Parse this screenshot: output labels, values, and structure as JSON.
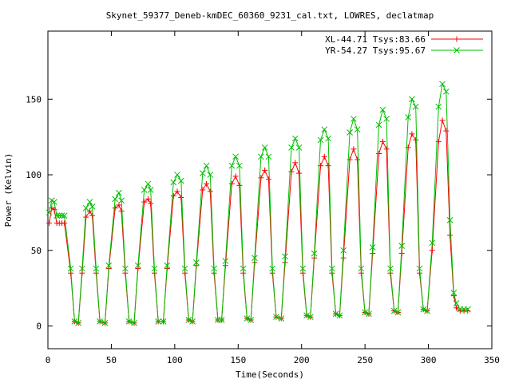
{
  "chart_data": {
    "type": "line",
    "title": "Skynet_59377_Deneb-kmDEC_60360_9231_cal.txt, LOWRES, declatmap",
    "xlabel": "Time(Seconds)",
    "ylabel": "Power (Kelvin)",
    "xlim": [
      0,
      350
    ],
    "ylim": [
      -15,
      195
    ],
    "x_ticks": [
      0,
      50,
      100,
      150,
      200,
      250,
      300,
      350
    ],
    "y_ticks": [
      0,
      50,
      100,
      150
    ],
    "grid": false,
    "legend_position": "top-right",
    "series": [
      {
        "name": "XL-44.71 Tsys:83.66",
        "color": "#ff0000",
        "marker": "plus",
        "points": [
          [
            1,
            68
          ],
          [
            3,
            78
          ],
          [
            5,
            77
          ],
          [
            7,
            68
          ],
          [
            9,
            68
          ],
          [
            11,
            68
          ],
          [
            13,
            68
          ],
          [
            18,
            35
          ],
          [
            21,
            3
          ],
          [
            24,
            2
          ],
          [
            27,
            35
          ],
          [
            30,
            72
          ],
          [
            33,
            76
          ],
          [
            35,
            73
          ],
          [
            38,
            35
          ],
          [
            41,
            3
          ],
          [
            45,
            2
          ],
          [
            48,
            38
          ],
          [
            53,
            78
          ],
          [
            56,
            80
          ],
          [
            58,
            76
          ],
          [
            61,
            35
          ],
          [
            64,
            3
          ],
          [
            68,
            2
          ],
          [
            71,
            38
          ],
          [
            76,
            82
          ],
          [
            79,
            84
          ],
          [
            81,
            81
          ],
          [
            84,
            35
          ],
          [
            87,
            3
          ],
          [
            91,
            3
          ],
          [
            94,
            38
          ],
          [
            99,
            86
          ],
          [
            102,
            89
          ],
          [
            105,
            85
          ],
          [
            108,
            35
          ],
          [
            111,
            4
          ],
          [
            114,
            3
          ],
          [
            117,
            40
          ],
          [
            122,
            90
          ],
          [
            125,
            94
          ],
          [
            128,
            89
          ],
          [
            131,
            35
          ],
          [
            134,
            4
          ],
          [
            137,
            4
          ],
          [
            140,
            40
          ],
          [
            145,
            94
          ],
          [
            148,
            99
          ],
          [
            151,
            93
          ],
          [
            154,
            35
          ],
          [
            157,
            5
          ],
          [
            160,
            4
          ],
          [
            163,
            42
          ],
          [
            168,
            98
          ],
          [
            171,
            103
          ],
          [
            174,
            97
          ],
          [
            177,
            35
          ],
          [
            180,
            6
          ],
          [
            184,
            5
          ],
          [
            187,
            42
          ],
          [
            192,
            102
          ],
          [
            195,
            108
          ],
          [
            198,
            101
          ],
          [
            201,
            35
          ],
          [
            204,
            7
          ],
          [
            207,
            6
          ],
          [
            210,
            45
          ],
          [
            215,
            106
          ],
          [
            218,
            112
          ],
          [
            221,
            106
          ],
          [
            224,
            35
          ],
          [
            227,
            8
          ],
          [
            230,
            7
          ],
          [
            233,
            45
          ],
          [
            238,
            110
          ],
          [
            241,
            117
          ],
          [
            244,
            110
          ],
          [
            247,
            35
          ],
          [
            250,
            9
          ],
          [
            253,
            8
          ],
          [
            256,
            48
          ],
          [
            261,
            114
          ],
          [
            264,
            122
          ],
          [
            267,
            117
          ],
          [
            270,
            35
          ],
          [
            273,
            10
          ],
          [
            276,
            9
          ],
          [
            279,
            48
          ],
          [
            284,
            118
          ],
          [
            287,
            127
          ],
          [
            290,
            123
          ],
          [
            293,
            35
          ],
          [
            296,
            11
          ],
          [
            299,
            10
          ],
          [
            303,
            50
          ],
          [
            308,
            122
          ],
          [
            311,
            136
          ],
          [
            314,
            129
          ],
          [
            317,
            60
          ],
          [
            320,
            20
          ],
          [
            322,
            12
          ],
          [
            325,
            10
          ],
          [
            328,
            10
          ],
          [
            331,
            10
          ]
        ]
      },
      {
        "name": "YR-54.27 Tsys:95.67",
        "color": "#00c000",
        "marker": "cross",
        "points": [
          [
            1,
            75
          ],
          [
            3,
            83
          ],
          [
            5,
            82
          ],
          [
            7,
            73
          ],
          [
            9,
            73
          ],
          [
            11,
            73
          ],
          [
            13,
            73
          ],
          [
            18,
            38
          ],
          [
            21,
            3
          ],
          [
            24,
            2
          ],
          [
            27,
            38
          ],
          [
            30,
            78
          ],
          [
            33,
            82
          ],
          [
            35,
            79
          ],
          [
            38,
            38
          ],
          [
            41,
            3
          ],
          [
            45,
            2
          ],
          [
            48,
            40
          ],
          [
            53,
            84
          ],
          [
            56,
            88
          ],
          [
            58,
            83
          ],
          [
            61,
            38
          ],
          [
            64,
            3
          ],
          [
            68,
            2
          ],
          [
            71,
            40
          ],
          [
            76,
            90
          ],
          [
            79,
            94
          ],
          [
            81,
            90
          ],
          [
            84,
            38
          ],
          [
            87,
            3
          ],
          [
            91,
            3
          ],
          [
            94,
            40
          ],
          [
            99,
            95
          ],
          [
            102,
            100
          ],
          [
            105,
            96
          ],
          [
            108,
            38
          ],
          [
            111,
            4
          ],
          [
            114,
            3
          ],
          [
            117,
            42
          ],
          [
            122,
            101
          ],
          [
            125,
            106
          ],
          [
            128,
            100
          ],
          [
            131,
            38
          ],
          [
            134,
            4
          ],
          [
            137,
            4
          ],
          [
            140,
            43
          ],
          [
            145,
            106
          ],
          [
            148,
            112
          ],
          [
            151,
            106
          ],
          [
            154,
            38
          ],
          [
            157,
            5
          ],
          [
            160,
            4
          ],
          [
            163,
            45
          ],
          [
            168,
            112
          ],
          [
            171,
            118
          ],
          [
            174,
            112
          ],
          [
            177,
            38
          ],
          [
            180,
            6
          ],
          [
            184,
            5
          ],
          [
            187,
            46
          ],
          [
            192,
            118
          ],
          [
            195,
            124
          ],
          [
            198,
            118
          ],
          [
            201,
            38
          ],
          [
            204,
            7
          ],
          [
            207,
            6
          ],
          [
            210,
            48
          ],
          [
            215,
            123
          ],
          [
            218,
            130
          ],
          [
            221,
            124
          ],
          [
            224,
            38
          ],
          [
            227,
            8
          ],
          [
            230,
            7
          ],
          [
            233,
            50
          ],
          [
            238,
            128
          ],
          [
            241,
            137
          ],
          [
            244,
            130
          ],
          [
            247,
            38
          ],
          [
            250,
            9
          ],
          [
            253,
            8
          ],
          [
            256,
            52
          ],
          [
            261,
            133
          ],
          [
            264,
            143
          ],
          [
            267,
            137
          ],
          [
            270,
            38
          ],
          [
            273,
            10
          ],
          [
            276,
            9
          ],
          [
            279,
            53
          ],
          [
            284,
            138
          ],
          [
            287,
            150
          ],
          [
            290,
            145
          ],
          [
            293,
            38
          ],
          [
            296,
            11
          ],
          [
            299,
            10
          ],
          [
            303,
            55
          ],
          [
            308,
            145
          ],
          [
            311,
            160
          ],
          [
            314,
            155
          ],
          [
            317,
            70
          ],
          [
            320,
            22
          ],
          [
            322,
            15
          ],
          [
            325,
            11
          ],
          [
            328,
            11
          ],
          [
            331,
            11
          ]
        ]
      }
    ]
  }
}
